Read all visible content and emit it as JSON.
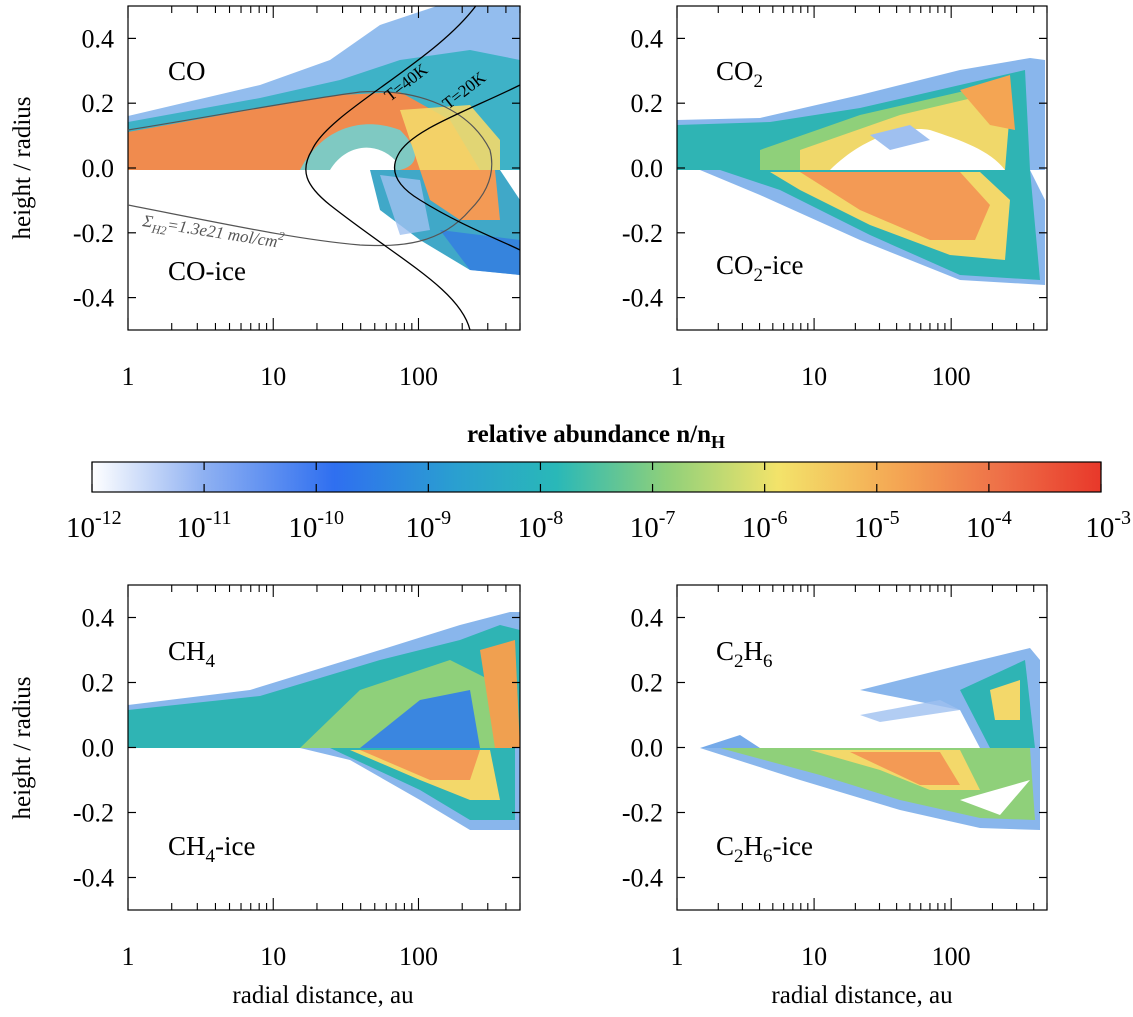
{
  "colorbar": {
    "title": "relative abundance n/n",
    "title_sub": "H",
    "ticks": [
      {
        "base": "10",
        "exp": "-12"
      },
      {
        "base": "10",
        "exp": "-11"
      },
      {
        "base": "10",
        "exp": "-10"
      },
      {
        "base": "10",
        "exp": "-9"
      },
      {
        "base": "10",
        "exp": "-8"
      },
      {
        "base": "10",
        "exp": "-7"
      },
      {
        "base": "10",
        "exp": "-6"
      },
      {
        "base": "10",
        "exp": "-5"
      },
      {
        "base": "10",
        "exp": "-4"
      },
      {
        "base": "10",
        "exp": "-3"
      }
    ],
    "range_log10": [
      -12,
      -3
    ],
    "colors": [
      "#ffffff",
      "#2f6ff0",
      "#29b8b8",
      "#f3e36a",
      "#e8382a"
    ]
  },
  "axes": {
    "ylabel": "height / radius",
    "xlabel": "radial distance, au",
    "yticks": [
      "0.4",
      "0.2",
      "0.0",
      "-0.2",
      "-0.4"
    ],
    "xticks": [
      "1",
      "10",
      "100"
    ]
  },
  "chart_data": [
    {
      "type": "heatmap",
      "species_gas": "CO",
      "species_ice": "CO-ice",
      "x_scale": "log",
      "xlim": [
        1,
        500
      ],
      "ylim": [
        -0.5,
        0.5
      ],
      "annotations": [
        "T=40K",
        "T=20K"
      ],
      "surface_label": {
        "prefix": "Σ",
        "sub": "H2",
        "text": "=1.3e21 mol/cm",
        "sup": "2"
      }
    },
    {
      "type": "heatmap",
      "species_gas": "CO",
      "gas_sub": "2",
      "ice_tail": "-ice",
      "x_scale": "log",
      "xlim": [
        1,
        500
      ],
      "ylim": [
        -0.5,
        0.5
      ]
    },
    {
      "type": "heatmap",
      "species_gas": "CH",
      "gas_sub": "4",
      "ice_tail": "-ice",
      "x_scale": "log",
      "xlim": [
        1,
        500
      ],
      "ylim": [
        -0.5,
        0.5
      ]
    },
    {
      "type": "heatmap",
      "species_gas": "C",
      "gas_sub": "2",
      "gas_mid": "H",
      "gas_sub2": "6",
      "ice_tail": "-ice",
      "x_scale": "log",
      "xlim": [
        1,
        500
      ],
      "ylim": [
        -0.5,
        0.5
      ]
    }
  ]
}
